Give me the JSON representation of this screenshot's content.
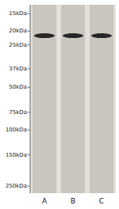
{
  "chart_data": {
    "type": "scatter",
    "marker": "band",
    "log": "y",
    "categories": [
      "A",
      "B",
      "C"
    ],
    "values": [
      21.5,
      21.5,
      21.5
    ],
    "color": "#111111",
    "ylim": [
      280.0,
      13.0
    ],
    "yticks": [
      {
        "value": 250,
        "label": "250kDa"
      },
      {
        "value": 150,
        "label": "150kDa"
      },
      {
        "value": 100,
        "label": "100kDa"
      },
      {
        "value": 75,
        "label": "75kDa"
      },
      {
        "value": 50,
        "label": "50kDa"
      },
      {
        "value": 37,
        "label": "37kDa"
      },
      {
        "value": 25,
        "label": "25kDa"
      },
      {
        "value": 20,
        "label": "20kDa"
      },
      {
        "value": 15,
        "label": "15kDa"
      }
    ],
    "grid": false
  }
}
